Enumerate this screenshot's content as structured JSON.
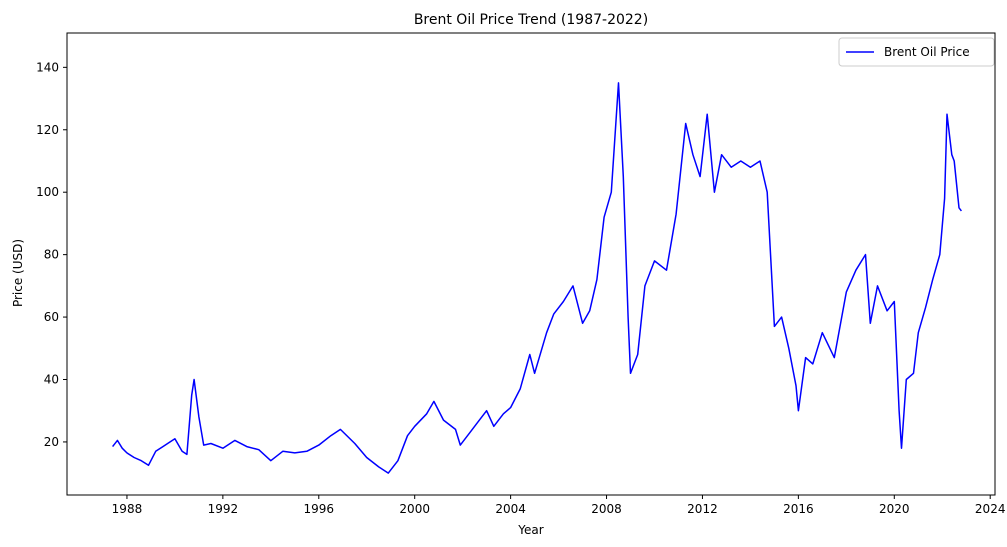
{
  "chart_data": {
    "type": "line",
    "title": "Brent Oil Price Trend (1987-2022)",
    "xlabel": "Year",
    "ylabel": "Price (USD)",
    "xlim": [
      1985.5,
      2024.2
    ],
    "ylim": [
      3,
      151
    ],
    "xticks": [
      1988,
      1992,
      1996,
      2000,
      2004,
      2008,
      2012,
      2016,
      2020,
      2024
    ],
    "yticks": [
      20,
      40,
      60,
      80,
      100,
      120,
      140
    ],
    "grid": false,
    "legend": {
      "position": "top-right"
    },
    "series": [
      {
        "name": "Brent Oil Price",
        "color": "#0000ff",
        "x": [
          1987.4,
          1987.6,
          1987.8,
          1988.0,
          1988.3,
          1988.6,
          1988.9,
          1989.2,
          1989.5,
          1989.8,
          1990.0,
          1990.3,
          1990.5,
          1990.7,
          1990.8,
          1991.0,
          1991.2,
          1991.5,
          1992.0,
          1992.5,
          1993.0,
          1993.5,
          1994.0,
          1994.5,
          1995.0,
          1995.5,
          1996.0,
          1996.5,
          1996.9,
          1997.5,
          1998.0,
          1998.5,
          1998.9,
          1999.3,
          1999.7,
          2000.0,
          2000.5,
          2000.8,
          2001.2,
          2001.7,
          2001.9,
          2002.3,
          2002.7,
          2003.0,
          2003.3,
          2003.7,
          2004.0,
          2004.4,
          2004.8,
          2005.0,
          2005.5,
          2005.8,
          2006.2,
          2006.6,
          2007.0,
          2007.3,
          2007.6,
          2007.9,
          2008.2,
          2008.5,
          2008.7,
          2008.9,
          2009.0,
          2009.3,
          2009.6,
          2010.0,
          2010.5,
          2010.9,
          2011.3,
          2011.6,
          2011.9,
          2012.2,
          2012.5,
          2012.8,
          2013.2,
          2013.6,
          2014.0,
          2014.4,
          2014.7,
          2015.0,
          2015.3,
          2015.6,
          2015.9,
          2016.0,
          2016.3,
          2016.6,
          2017.0,
          2017.5,
          2018.0,
          2018.4,
          2018.8,
          2019.0,
          2019.3,
          2019.7,
          2020.0,
          2020.2,
          2020.3,
          2020.5,
          2020.8,
          2021.0,
          2021.3,
          2021.6,
          2021.9,
          2022.1,
          2022.2,
          2022.4,
          2022.5,
          2022.7,
          2022.8
        ],
        "values": [
          18.5,
          20.5,
          18,
          16.5,
          15,
          14,
          12.5,
          17,
          18.5,
          20,
          21,
          17,
          16,
          35,
          40,
          28,
          19,
          19.5,
          18,
          20.5,
          18.5,
          17.5,
          14,
          17,
          16.5,
          17,
          19,
          22,
          24,
          19.5,
          15,
          12,
          10,
          14,
          22,
          25,
          29,
          33,
          27,
          24,
          19,
          23,
          27,
          30,
          25,
          29,
          31,
          37,
          48,
          42,
          55,
          61,
          65,
          70,
          58,
          62,
          72,
          92,
          100,
          135,
          105,
          60,
          42,
          48,
          70,
          78,
          75,
          93,
          122,
          112,
          105,
          125,
          100,
          112,
          108,
          110,
          108,
          110,
          100,
          57,
          60,
          50,
          38,
          30,
          47,
          45,
          55,
          47,
          68,
          75,
          80,
          58,
          70,
          62,
          65,
          30,
          18,
          40,
          42,
          55,
          63,
          72,
          80,
          98,
          125,
          112,
          110,
          95,
          94
        ]
      }
    ]
  }
}
